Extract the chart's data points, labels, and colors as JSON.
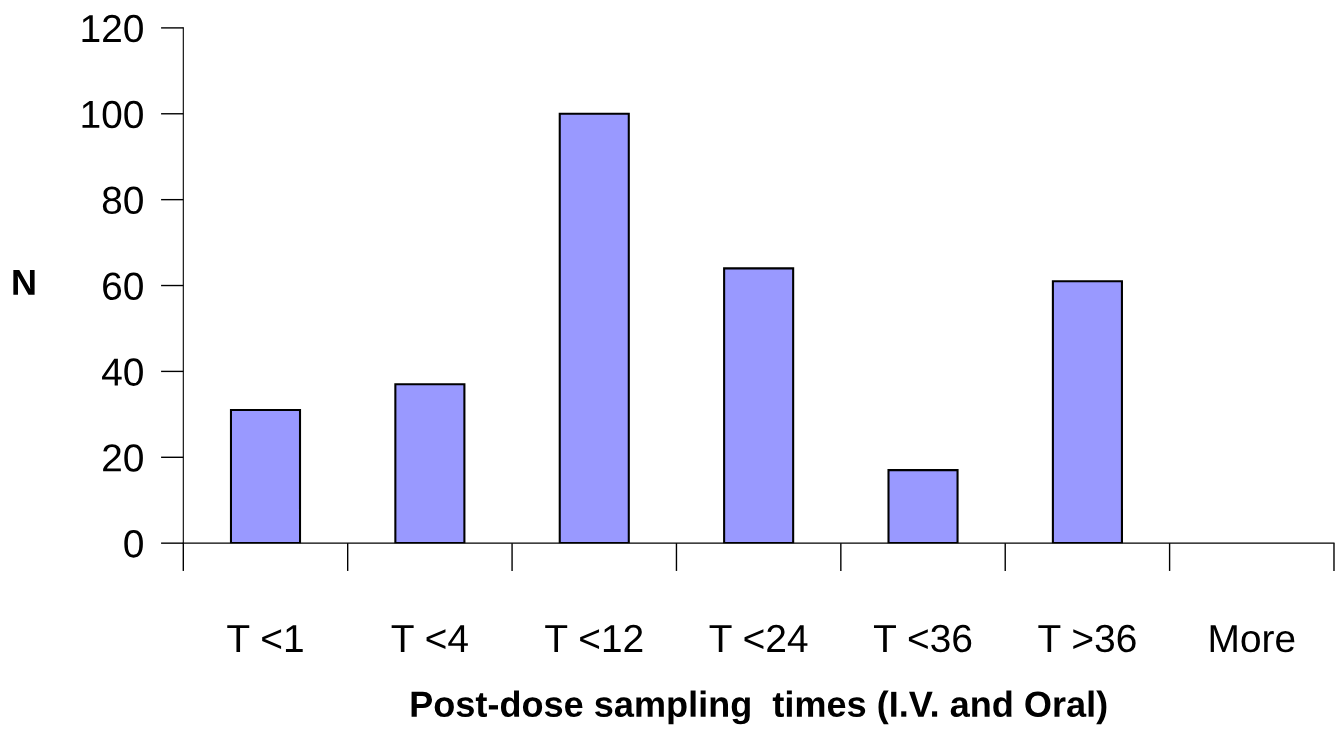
{
  "chart_data": {
    "type": "bar",
    "xlabel": "Post-dose sampling  times (I.V. and Oral)",
    "ylabel": "N",
    "categories": [
      "T <1",
      "T <4",
      "T <12",
      "T <24",
      "T <36",
      "T >36",
      "More"
    ],
    "values": [
      31,
      37,
      100,
      64,
      17,
      61,
      null
    ],
    "color": "#9999ff",
    "ylim": [
      0,
      120
    ],
    "yticks": [
      0,
      20,
      40,
      60,
      80,
      100,
      120
    ],
    "grid": false,
    "legend": false
  }
}
